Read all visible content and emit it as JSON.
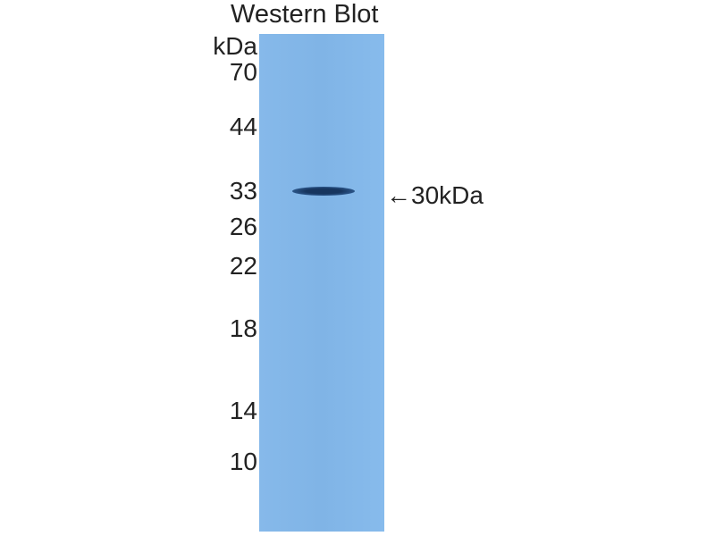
{
  "title": "Western Blot",
  "unit": "kDa",
  "markers": [
    "70",
    "44",
    "33",
    "26",
    "22",
    "18",
    "14",
    "10"
  ],
  "band_label": "←30kDa",
  "colors": {
    "membrane": "#80b4e6",
    "band": "#1b3a66"
  }
}
